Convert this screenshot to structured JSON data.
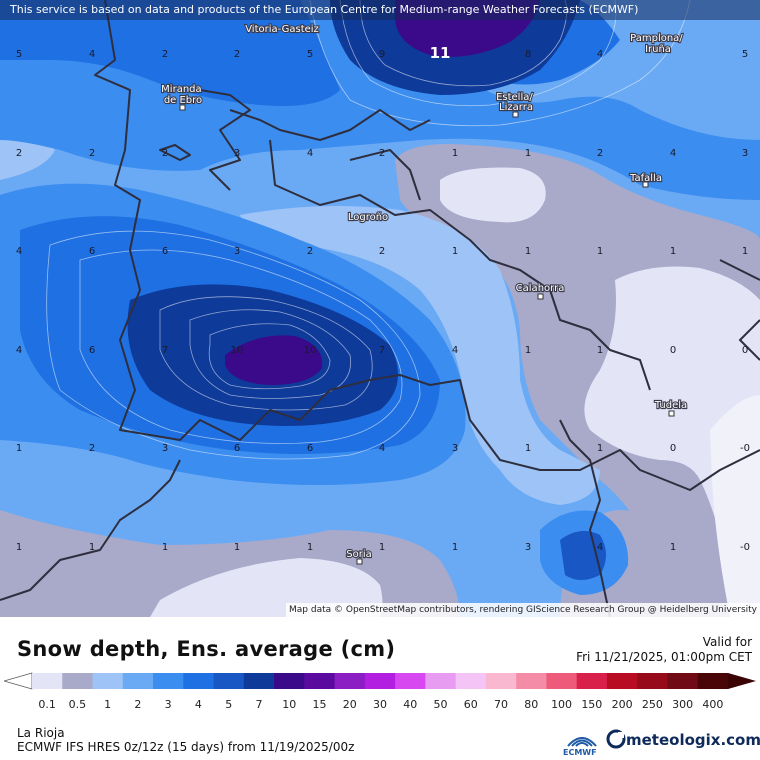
{
  "header": {
    "attribution": "This service is based on data and products of the European Centre for Medium-range Weather Forecasts (ECMWF)"
  },
  "map": {
    "attribution": "Map data © OpenStreetMap contributors, rendering GIScience Research Group @ Heidelberg University",
    "peak_value": "11",
    "cities": [
      {
        "name": "Vitoria-Gasteiz"
      },
      {
        "name": "Pamplona/\nIruña"
      },
      {
        "name": "Miranda\nde Ebro"
      },
      {
        "name": "Estella/\nLizarra"
      },
      {
        "name": "Tafalla"
      },
      {
        "name": "Logroño"
      },
      {
        "name": "Calahorra"
      },
      {
        "name": "Tudela"
      },
      {
        "name": "Soria"
      }
    ],
    "grid_values": [
      [
        "5",
        "4",
        "2",
        "2",
        "5",
        "9",
        "11",
        "8",
        "4",
        "5"
      ],
      [
        "2",
        "2",
        "2",
        "3",
        "4",
        "2",
        "1",
        "1",
        "2",
        "4",
        "3"
      ],
      [
        "4",
        "6",
        "6",
        "3",
        "2",
        "2",
        "1",
        "1",
        "1",
        "1",
        "1"
      ],
      [
        "4",
        "6",
        "7",
        "10",
        "10",
        "7",
        "4",
        "1",
        "1",
        "0",
        "0"
      ],
      [
        "1",
        "2",
        "3",
        "6",
        "6",
        "4",
        "3",
        "1",
        "1",
        "0",
        "-0"
      ],
      [
        "1",
        "1",
        "1",
        "1",
        "1",
        "1",
        "1",
        "3",
        "4",
        "1",
        "-0"
      ]
    ]
  },
  "footer": {
    "title": "Snow depth, Ens. average (cm)",
    "valid_label": "Valid for",
    "valid_time": "Fri 11/21/2025, 01:00pm CET",
    "region": "La Rioja",
    "model_info": "ECMWF IFS HRES 0z/12z (15 days) from  11/19/2025/00z",
    "ecmwf_logo_text": "ECMWF",
    "meteologix_logo_text": "meteologix.com"
  },
  "colorbar": {
    "labels": [
      "0.1",
      "0.5",
      "1",
      "2",
      "3",
      "4",
      "5",
      "7",
      "10",
      "15",
      "20",
      "30",
      "40",
      "50",
      "60",
      "70",
      "80",
      "100",
      "150",
      "200",
      "250",
      "300",
      "400"
    ],
    "colors": [
      "#e4e4f7",
      "#a9a9c9",
      "#9ec3f6",
      "#6aaaf5",
      "#3c8df0",
      "#1f71e3",
      "#1857c4",
      "#0e3a9a",
      "#3b0a8a",
      "#5b0aa0",
      "#8b1fc4",
      "#b31fe0",
      "#d848f0",
      "#e79cf2",
      "#f3c4f5",
      "#f9b8d0",
      "#f58ca7",
      "#ee5a79",
      "#d8204a",
      "#b80c22",
      "#960a1a",
      "#700a14",
      "#4a0606"
    ],
    "left_arrow_color": "#ffffff",
    "right_arrow_color": "#3a0404"
  }
}
